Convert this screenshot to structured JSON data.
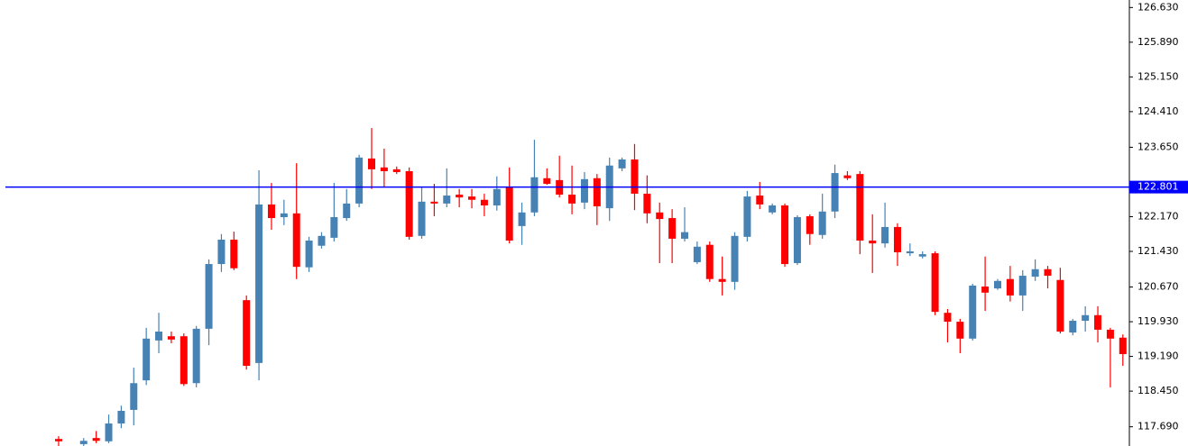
{
  "chart_data": {
    "type": "candlestick",
    "up_color": "#4682b4",
    "down_color": "#ff0000",
    "ylim": [
      117.28,
      126.79
    ],
    "yticks": [
      {
        "value": 126.63,
        "label": "126.630"
      },
      {
        "value": 125.89,
        "label": "125.890"
      },
      {
        "value": 125.15,
        "label": "125.150"
      },
      {
        "value": 124.41,
        "label": "124.410"
      },
      {
        "value": 123.65,
        "label": "123.650"
      },
      {
        "value": 122.17,
        "label": "122.170"
      },
      {
        "value": 121.43,
        "label": "121.430"
      },
      {
        "value": 120.67,
        "label": "120.670"
      },
      {
        "value": 119.93,
        "label": "119.930"
      },
      {
        "value": 119.19,
        "label": "119.190"
      },
      {
        "value": 118.45,
        "label": "118.450"
      },
      {
        "value": 117.69,
        "label": "117.690"
      }
    ],
    "hline": {
      "value": 122.801,
      "label": "122.801",
      "color": "#0000ff"
    },
    "open": [
      117.43,
      117.1,
      117.32,
      117.45,
      117.38,
      117.76,
      118.05,
      118.68,
      119.53,
      119.62,
      119.62,
      118.62,
      119.78,
      121.16,
      121.68,
      120.39,
      119.05,
      122.43,
      122.16,
      122.24,
      121.09,
      121.55,
      121.72,
      122.14,
      122.45,
      123.41,
      123.22,
      123.18,
      123.14,
      121.76,
      122.49,
      122.45,
      122.64,
      122.6,
      122.53,
      122.41,
      122.8,
      121.97,
      122.26,
      122.99,
      122.95,
      122.64,
      122.47,
      122.99,
      122.35,
      123.2,
      123.39,
      122.66,
      122.26,
      122.14,
      121.7,
      121.2,
      121.57,
      120.84,
      120.78,
      121.74,
      122.62,
      122.26,
      122.41,
      121.18,
      122.18,
      121.78,
      122.28,
      123.05,
      123.08,
      121.66,
      121.6,
      121.95,
      121.39,
      121.32,
      121.39,
      120.12,
      119.93,
      119.57,
      120.68,
      120.64,
      120.84,
      120.49,
      120.89,
      121.05,
      120.82,
      119.7,
      119.95,
      120.07,
      119.76,
      119.59
    ],
    "high": [
      117.49,
      117.25,
      117.45,
      117.6,
      117.95,
      118.14,
      118.95,
      119.8,
      120.12,
      119.72,
      119.68,
      119.84,
      121.26,
      121.8,
      121.85,
      120.49,
      123.16,
      122.89,
      122.53,
      123.31,
      121.74,
      121.84,
      122.89,
      122.76,
      123.49,
      124.06,
      123.62,
      123.24,
      123.22,
      122.8,
      122.87,
      123.2,
      122.76,
      122.76,
      122.66,
      123.03,
      123.22,
      122.47,
      123.81,
      123.2,
      123.47,
      123.26,
      123.12,
      123.08,
      123.43,
      123.43,
      123.72,
      123.05,
      122.47,
      122.33,
      122.37,
      121.64,
      121.64,
      121.32,
      121.84,
      122.72,
      122.91,
      122.45,
      122.45,
      122.2,
      122.22,
      122.66,
      123.28,
      123.14,
      123.14,
      122.22,
      122.47,
      122.03,
      121.6,
      121.43,
      121.43,
      120.2,
      119.99,
      120.74,
      121.32,
      120.84,
      121.12,
      121.03,
      121.26,
      121.12,
      121.08,
      119.99,
      120.26,
      120.26,
      119.8,
      119.66
    ],
    "low": [
      117.28,
      117.0,
      117.28,
      117.34,
      117.34,
      117.66,
      117.72,
      118.58,
      119.26,
      119.47,
      118.56,
      118.53,
      119.43,
      120.99,
      121.03,
      118.91,
      118.68,
      121.89,
      121.99,
      120.84,
      120.99,
      121.49,
      121.64,
      122.08,
      122.37,
      122.76,
      122.81,
      123.08,
      121.68,
      121.7,
      122.18,
      122.37,
      122.37,
      122.35,
      122.18,
      122.3,
      121.6,
      121.57,
      122.18,
      122.85,
      122.58,
      122.22,
      122.33,
      121.99,
      122.08,
      123.14,
      122.31,
      122.03,
      121.18,
      121.18,
      121.64,
      121.16,
      120.78,
      120.49,
      120.61,
      121.64,
      122.33,
      122.22,
      121.1,
      121.14,
      121.57,
      121.7,
      122.14,
      122.95,
      121.37,
      120.97,
      121.51,
      121.12,
      121.33,
      121.28,
      120.07,
      119.49,
      119.26,
      119.53,
      120.16,
      120.61,
      120.36,
      120.16,
      120.8,
      120.64,
      119.68,
      119.64,
      119.72,
      119.49,
      118.53,
      118.99
    ],
    "close": [
      117.38,
      117.2,
      117.39,
      117.39,
      117.76,
      118.03,
      118.62,
      119.57,
      119.72,
      119.55,
      118.6,
      119.78,
      121.16,
      121.68,
      121.07,
      118.99,
      122.43,
      122.14,
      122.24,
      121.1,
      121.66,
      121.76,
      122.16,
      122.45,
      123.43,
      123.18,
      123.14,
      123.12,
      121.74,
      122.49,
      122.45,
      122.62,
      122.58,
      122.53,
      122.41,
      122.76,
      121.66,
      122.26,
      123.01,
      122.87,
      122.64,
      122.45,
      122.97,
      122.39,
      123.26,
      123.39,
      122.66,
      122.24,
      122.12,
      121.7,
      121.84,
      121.53,
      120.84,
      120.78,
      121.76,
      122.6,
      122.43,
      122.41,
      121.16,
      122.16,
      121.8,
      122.28,
      123.1,
      122.99,
      121.66,
      121.6,
      121.95,
      121.41,
      121.43,
      121.37,
      120.14,
      119.93,
      119.57,
      120.7,
      120.55,
      120.8,
      120.49,
      120.91,
      121.05,
      120.91,
      119.72,
      119.95,
      120.07,
      119.76,
      119.57,
      119.24
    ]
  }
}
